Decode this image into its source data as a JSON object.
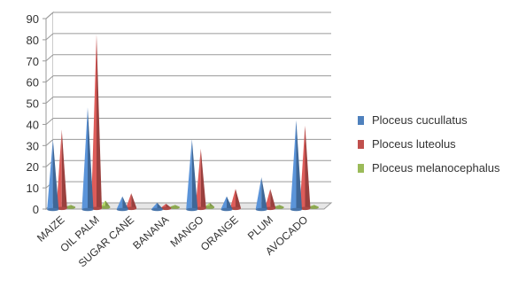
{
  "chart_data": {
    "type": "bar",
    "style": "3d-cone",
    "categories": [
      "MAIZE",
      "OIL PALM",
      "SUGAR CANE",
      "BANANA",
      "MANGO",
      "ORANGE",
      "PLUM",
      "AVOCADO"
    ],
    "series": [
      {
        "name": "Ploceus cucullatus",
        "color": "#4F81BD",
        "values": [
          33,
          48,
          6,
          3,
          33,
          6,
          15,
          42
        ]
      },
      {
        "name": "Ploceus luteolus",
        "color": "#C0504D",
        "values": [
          37,
          82,
          7,
          2,
          28,
          9,
          9,
          39
        ]
      },
      {
        "name": "Ploceus melanocephalus",
        "color": "#9BBB59",
        "values": [
          1,
          3,
          0,
          1,
          2,
          0,
          1,
          1
        ]
      }
    ],
    "title": "",
    "xlabel": "",
    "ylabel": "",
    "ylim": [
      0,
      90
    ],
    "yticks": [
      0,
      10,
      20,
      30,
      40,
      50,
      60,
      70,
      80,
      90
    ],
    "grid": true,
    "legend_position": "right"
  }
}
